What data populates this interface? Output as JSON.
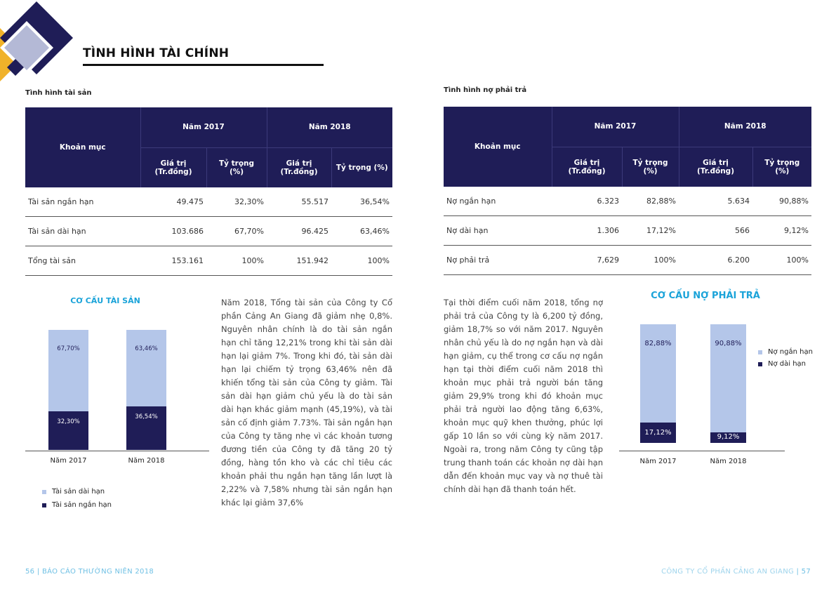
{
  "page_title": "TÌNH HÌNH TÀI CHÍNH",
  "colors": {
    "navy": "#1f1d57",
    "light_bar": "#b4c6e9",
    "accent_blue": "#1aa3d9",
    "gold": "#f0b22a"
  },
  "assets": {
    "section_label": "Tình hình tài sản",
    "table": {
      "head_item": "Khoản mục",
      "year1": "Năm 2017",
      "year2": "Năm 2018",
      "sub_value": "Giá trị (Tr.đồng)",
      "sub_share": "Tỷ trọng (%)",
      "rows": [
        {
          "label": "Tài sản ngắn hạn",
          "v1": "49.475",
          "p1": "32,30%",
          "v2": "55.517",
          "p2": "36,54%"
        },
        {
          "label": "Tài sản dài hạn",
          "v1": "103.686",
          "p1": "67,70%",
          "v2": "96.425",
          "p2": "63,46%"
        },
        {
          "label": "Tổng tài sản",
          "v1": "153.161",
          "p1": "100%",
          "v2": "151.942",
          "p2": "100%"
        }
      ]
    },
    "chart_title": "CƠ CẤU TÀI SẢN",
    "paragraph": "Năm 2018, Tổng tài sản của Công ty Cổ phần Cảng An Giang đã giảm nhẹ 0,8%. Nguyên nhân chính là do tài sản ngắn hạn chỉ tăng 12,21% trong khi tài sản dài hạn lại giảm 7%. Trong khi đó, tài sản dài hạn lại chiếm tỷ trọng 63,46% nên đã khiến tổng tài sản của Công ty giảm. Tài sản dài hạn giảm chủ yếu là do tài sản dài hạn khác giảm mạnh (45,19%), và tài sản cố định giảm 7.73%. Tài sản ngắn hạn của Công ty tăng nhẹ vì các khoản tương đương tiền của Công ty đã tăng 20 tỷ đồng, hàng tồn kho và các chỉ tiêu các khoản phải thu ngắn hạn tăng lần lượt là 2,22% và 7,58% nhưng tài sản ngắn hạn khác lại giảm 37,6%"
  },
  "liabilities": {
    "section_label": "Tình hình nợ phải trả",
    "table": {
      "head_item": "Khoản mục",
      "year1": "Năm 2017",
      "year2": "Năm 2018",
      "sub_value": "Giá trị (Tr.đồng)",
      "sub_share": "Tỷ trọng (%)",
      "rows": [
        {
          "label": "Nợ ngắn hạn",
          "v1": "6.323",
          "p1": "82,88%",
          "v2": "5.634",
          "p2": "90,88%"
        },
        {
          "label": "Nợ dài hạn",
          "v1": "1.306",
          "p1": "17,12%",
          "v2": "566",
          "p2": "9,12%"
        },
        {
          "label": "Nợ phải trả",
          "v1": "7,629",
          "p1": "100%",
          "v2": "6.200",
          "p2": "100%"
        }
      ]
    },
    "chart_title": "CƠ CẤU NỢ PHẢI TRẢ",
    "paragraph": "Tại thời điểm cuối năm 2018, tổng nợ phải trả của Công ty là 6,200 tỷ đồng, giảm 18,7% so với năm 2017. Nguyên nhân chủ yếu là do nợ ngắn hạn và dài hạn giảm, cụ thể trong cơ cấu nợ ngắn hạn tại thời điểm cuối năm 2018 thì khoản mục phải trả người bán tăng giảm 29,9% trong khi đó khoản mục phải trả người lao động tăng 6,63%, khoản mục quỹ khen thưởng, phúc lợi gấp 10 lần so với cùng kỳ năm 2017. Ngoài ra, trong năm Công ty cũng tập trung thanh toán các khoản nợ dài hạn dẫn đến khoản mục vay và nợ thuê tài chính dài hạn đã thanh toán hết."
  },
  "chart_data": [
    {
      "type": "bar",
      "stacked": true,
      "title": "CƠ CẤU TÀI SẢN",
      "categories": [
        "Năm 2017",
        "Năm 2018"
      ],
      "series": [
        {
          "name": "Tài sản ngắn hạn",
          "values": [
            32.3,
            36.54
          ],
          "labels": [
            "32,30%",
            "36,54%"
          ],
          "color": "#1f1d57"
        },
        {
          "name": "Tài sản dài hạn",
          "values": [
            67.7,
            63.46
          ],
          "labels": [
            "67,70%",
            "63,46%"
          ],
          "color": "#b4c6e9"
        }
      ],
      "ylim": [
        0,
        100
      ],
      "legend": [
        "Tài sản dài hạn",
        "Tài sản ngắn hạn"
      ],
      "legend_position": "bottom-left",
      "grid": false
    },
    {
      "type": "bar",
      "stacked": true,
      "title": "CƠ CẤU NỢ PHẢI TRẢ",
      "categories": [
        "Năm 2017",
        "Năm 2018"
      ],
      "series": [
        {
          "name": "Nợ dài hạn",
          "values": [
            17.12,
            9.12
          ],
          "labels": [
            "17,12%",
            "9,12%"
          ],
          "color": "#1f1d57"
        },
        {
          "name": "Nợ ngắn hạn",
          "values": [
            82.88,
            90.88
          ],
          "labels": [
            "82,88%",
            "90,88%"
          ],
          "color": "#b4c6e9"
        }
      ],
      "ylim": [
        0,
        100
      ],
      "legend": [
        "Nợ ngắn hạn",
        "Nợ dài hạn"
      ],
      "legend_position": "right",
      "grid": false
    }
  ],
  "footer": {
    "left_page": "56",
    "left_text": "BÁO CÁO THƯỜNG NIÊN 2018",
    "right_text": "CÔNG TY CỔ PHẦN CẢNG AN GIANG",
    "right_page": "57",
    "separator": "|"
  }
}
